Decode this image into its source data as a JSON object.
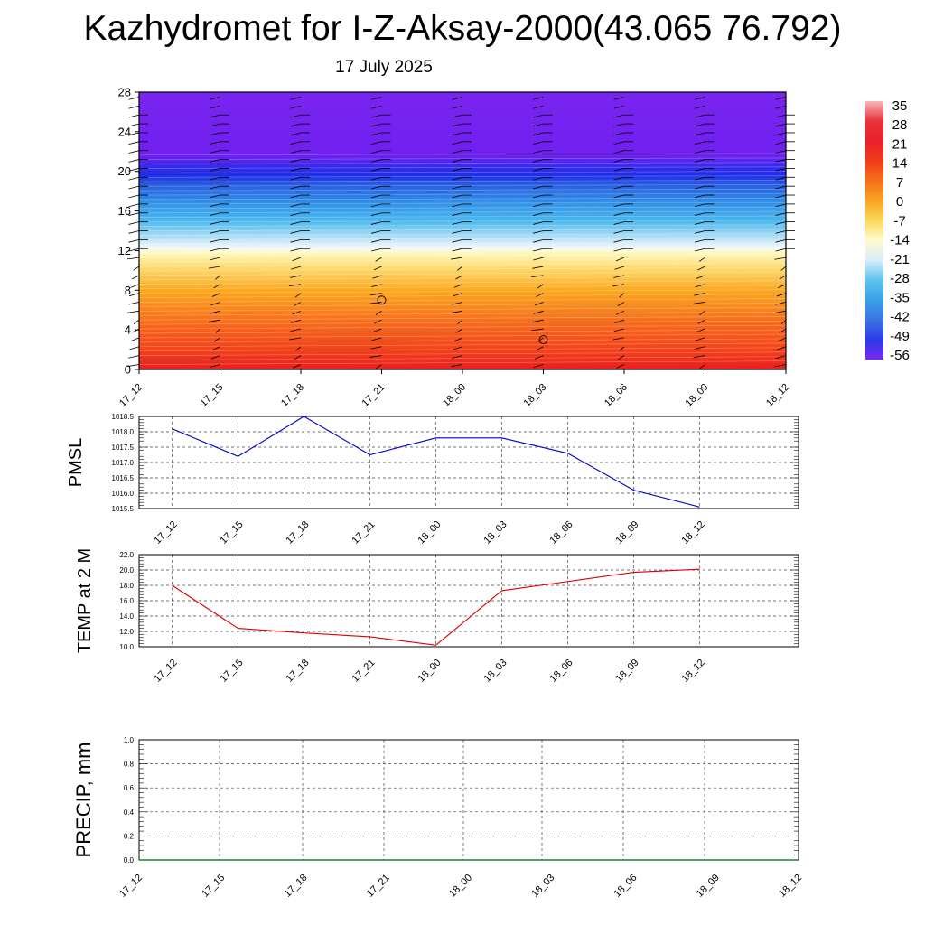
{
  "title": "Kazhydromet for I-Z-Aksay-2000(43.065 76.792)",
  "subtitle": "17 July 2025",
  "time_labels": [
    "17_12",
    "17_15",
    "17_18",
    "17_21",
    "18_00",
    "18_03",
    "18_06",
    "18_09",
    "18_12"
  ],
  "chart_data": [
    {
      "type": "heatmap",
      "name": "temperature-cross-section",
      "title": "",
      "ylabel": "",
      "x": [
        "17_12",
        "17_15",
        "17_18",
        "17_21",
        "18_00",
        "18_03",
        "18_06",
        "18_09",
        "18_12"
      ],
      "ylim": [
        0,
        28
      ],
      "yticks": [
        0,
        4,
        8,
        12,
        16,
        20,
        24,
        28
      ],
      "tropopause_height": 20,
      "freezing_height": 12,
      "surface_temp": 25,
      "top_temp": -56,
      "colorbar": {
        "labels": [
          "35",
          "28",
          "21",
          "14",
          "7",
          "0",
          "-7",
          "-14",
          "-21",
          "-28",
          "-35",
          "-42",
          "-49",
          "-56"
        ],
        "colors": [
          "#f7b8b8",
          "#e8323a",
          "#e8202c",
          "#f03c1a",
          "#f4701a",
          "#f9a322",
          "#fcd75a",
          "#fffbd0",
          "#d7eefa",
          "#5ec3f0",
          "#3aa0ea",
          "#3a74e2",
          "#2a3ae8",
          "#7a2af0"
        ]
      },
      "wind_barbs": "present",
      "annotations": [
        "calm wind circle near 17_21, 7",
        "calm wind circle near 18_03, 3"
      ]
    },
    {
      "type": "line",
      "name": "pmsl",
      "ylabel": "PMSL",
      "x": [
        "17_12",
        "17_15",
        "17_18",
        "17_21",
        "18_00",
        "18_03",
        "18_06",
        "18_09",
        "18_12"
      ],
      "values": [
        1018.1,
        1017.2,
        1018.5,
        1017.25,
        1017.8,
        1017.8,
        1017.3,
        1016.1,
        1015.55
      ],
      "ylim": [
        1015.5,
        1018.5
      ],
      "yticks": [
        "1018.5",
        "1018.0",
        "1017.5",
        "1017.0",
        "1016.5",
        "1016.0",
        "1015.5"
      ],
      "color": "#0000cc",
      "grid": true
    },
    {
      "type": "line",
      "name": "temp-2m",
      "ylabel": "TEMP at 2 M",
      "x": [
        "17_12",
        "17_15",
        "17_18",
        "17_21",
        "18_00",
        "18_03",
        "18_06",
        "18_09",
        "18_12"
      ],
      "values": [
        18.0,
        12.4,
        11.8,
        11.3,
        10.2,
        17.3,
        18.5,
        19.7,
        20.1
      ],
      "ylim": [
        10.0,
        22.0
      ],
      "yticks": [
        "22.0",
        "20.0",
        "18.0",
        "16.0",
        "14.0",
        "12.0",
        "10.0"
      ],
      "color": "#dd0000",
      "grid": true
    },
    {
      "type": "line",
      "name": "precip",
      "ylabel": "PRECIP, mm",
      "x": [
        "17_12",
        "17_15",
        "17_18",
        "17_21",
        "18_00",
        "18_03",
        "18_06",
        "18_09",
        "18_12"
      ],
      "values": [
        0,
        0,
        0,
        0,
        0,
        0,
        0,
        0,
        0
      ],
      "ylim": [
        0.0,
        1.0
      ],
      "yticks": [
        "1.0",
        "0.8",
        "0.6",
        "0.4",
        "0.2",
        "0.0"
      ],
      "color": "#006600",
      "grid": true
    }
  ]
}
